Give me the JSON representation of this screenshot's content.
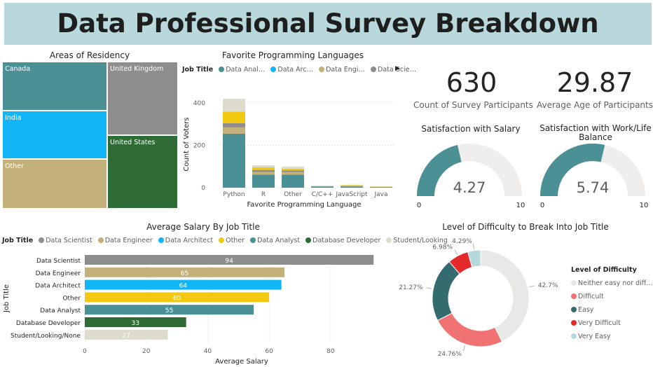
{
  "header": {
    "title": "Data Professional Survey Breakdown"
  },
  "cards": {
    "count": {
      "value": "630",
      "label": "Count of Survey Participants"
    },
    "age": {
      "value": "29.87",
      "label": "Average Age of Participants"
    }
  },
  "colors": {
    "teal": "#4a9094",
    "grey": "#8e8e8e",
    "blue": "#12b5f5",
    "tan": "#c4b07a",
    "green": "#2e6b35",
    "yellow": "#f2c811",
    "lightgrey": "#dddbcb",
    "red": "#e32929",
    "salmon": "#f07272",
    "darkteal": "#336b6e",
    "paleblue": "#b5d8dc",
    "offwhite": "#e8e8e6"
  },
  "chart_data": [
    {
      "type": "treemap",
      "title": "Areas of Residency",
      "cells": [
        {
          "label": "Canada",
          "color": "#4a9094"
        },
        {
          "label": "India",
          "color": "#12b5f5"
        },
        {
          "label": "Other",
          "color": "#c4b07a"
        },
        {
          "label": "United Kingdom",
          "color": "#8e8e8e"
        },
        {
          "label": "United States",
          "color": "#2e6b35"
        }
      ]
    },
    {
      "type": "bar",
      "stacked": true,
      "title": "Favorite Programming Languages",
      "legend_title": "Job Title",
      "legend": [
        "Data Anal…",
        "Data Arc…",
        "Data Engi…",
        "Data Scie…"
      ],
      "xlabel": "Favorite Programming Language",
      "ylabel": "Count of Voters",
      "ylim": [
        0,
        450
      ],
      "yticks": [
        "0",
        "200",
        "400"
      ],
      "categories": [
        "Python",
        "R",
        "Other",
        "C/C++",
        "JavaScript",
        "Java"
      ],
      "series": [
        {
          "name": "Data Analyst",
          "color": "#4a9094",
          "values": [
            255,
            62,
            62,
            6,
            6,
            3
          ]
        },
        {
          "name": "Data Engineer",
          "color": "#c4b07a",
          "values": [
            30,
            12,
            12,
            1,
            3,
            1
          ]
        },
        {
          "name": "Data Scientist",
          "color": "#8e8e8e",
          "values": [
            20,
            10,
            8,
            0,
            0,
            0
          ]
        },
        {
          "name": "Other",
          "color": "#f2c811",
          "values": [
            55,
            12,
            8,
            1,
            3,
            1
          ]
        },
        {
          "name": "Student/Looking/None",
          "color": "#dddbcb",
          "values": [
            60,
            10,
            10,
            1,
            2,
            1
          ]
        }
      ]
    },
    {
      "type": "gauge",
      "title": "Satisfaction with Salary",
      "value": 4.27,
      "value_label": "4.27",
      "min": 0,
      "max": 10,
      "min_label": "0",
      "max_label": "10"
    },
    {
      "type": "gauge",
      "title": "Satisfaction with Work/Life Balance",
      "value": 5.74,
      "value_label": "5.74",
      "min": 0,
      "max": 10,
      "min_label": "0",
      "max_label": "10"
    },
    {
      "type": "bar",
      "orientation": "horizontal",
      "title": "Average Salary By Job Title",
      "legend_title": "Job Title",
      "xlabel": "Average Salary",
      "ylabel": "Job Title",
      "xlim": [
        0,
        96
      ],
      "xticks": [
        "0",
        "20",
        "40",
        "60",
        "80"
      ],
      "categories": [
        "Data Scientist",
        "Data Engineer",
        "Data Architect",
        "Other",
        "Data Analyst",
        "Database Developer",
        "Student/Looking/None"
      ],
      "values": [
        94,
        65,
        64,
        60,
        55,
        33,
        27
      ],
      "value_labels": [
        "94",
        "65",
        "64",
        "60",
        "55",
        "33",
        "27"
      ],
      "legend": [
        "Data Scientist",
        "Data Engineer",
        "Data Architect",
        "Other",
        "Data Analyst",
        "Database Developer",
        "Student/Looking"
      ],
      "colors": [
        "#8e8e8e",
        "#c4b07a",
        "#12b5f5",
        "#f2c811",
        "#4a9094",
        "#2e6b35",
        "#dddbcb"
      ]
    },
    {
      "type": "pie",
      "donut": true,
      "title": "Level of Difficulty to Break Into Job Title",
      "legend_title": "Level of Difficulty",
      "slices": [
        {
          "name": "Neither easy nor diff…",
          "value": 42.7,
          "label": "42.7%",
          "color": "#e8e8e6"
        },
        {
          "name": "Difficult",
          "value": 24.76,
          "label": "24.76%",
          "color": "#f07272"
        },
        {
          "name": "Easy",
          "value": 21.27,
          "label": "21.27%",
          "color": "#336b6e"
        },
        {
          "name": "Very Difficult",
          "value": 6.98,
          "label": "6.98%",
          "color": "#e32929"
        },
        {
          "name": "Very Easy",
          "value": 4.29,
          "label": "4.29%",
          "color": "#b5d8dc"
        }
      ]
    }
  ]
}
